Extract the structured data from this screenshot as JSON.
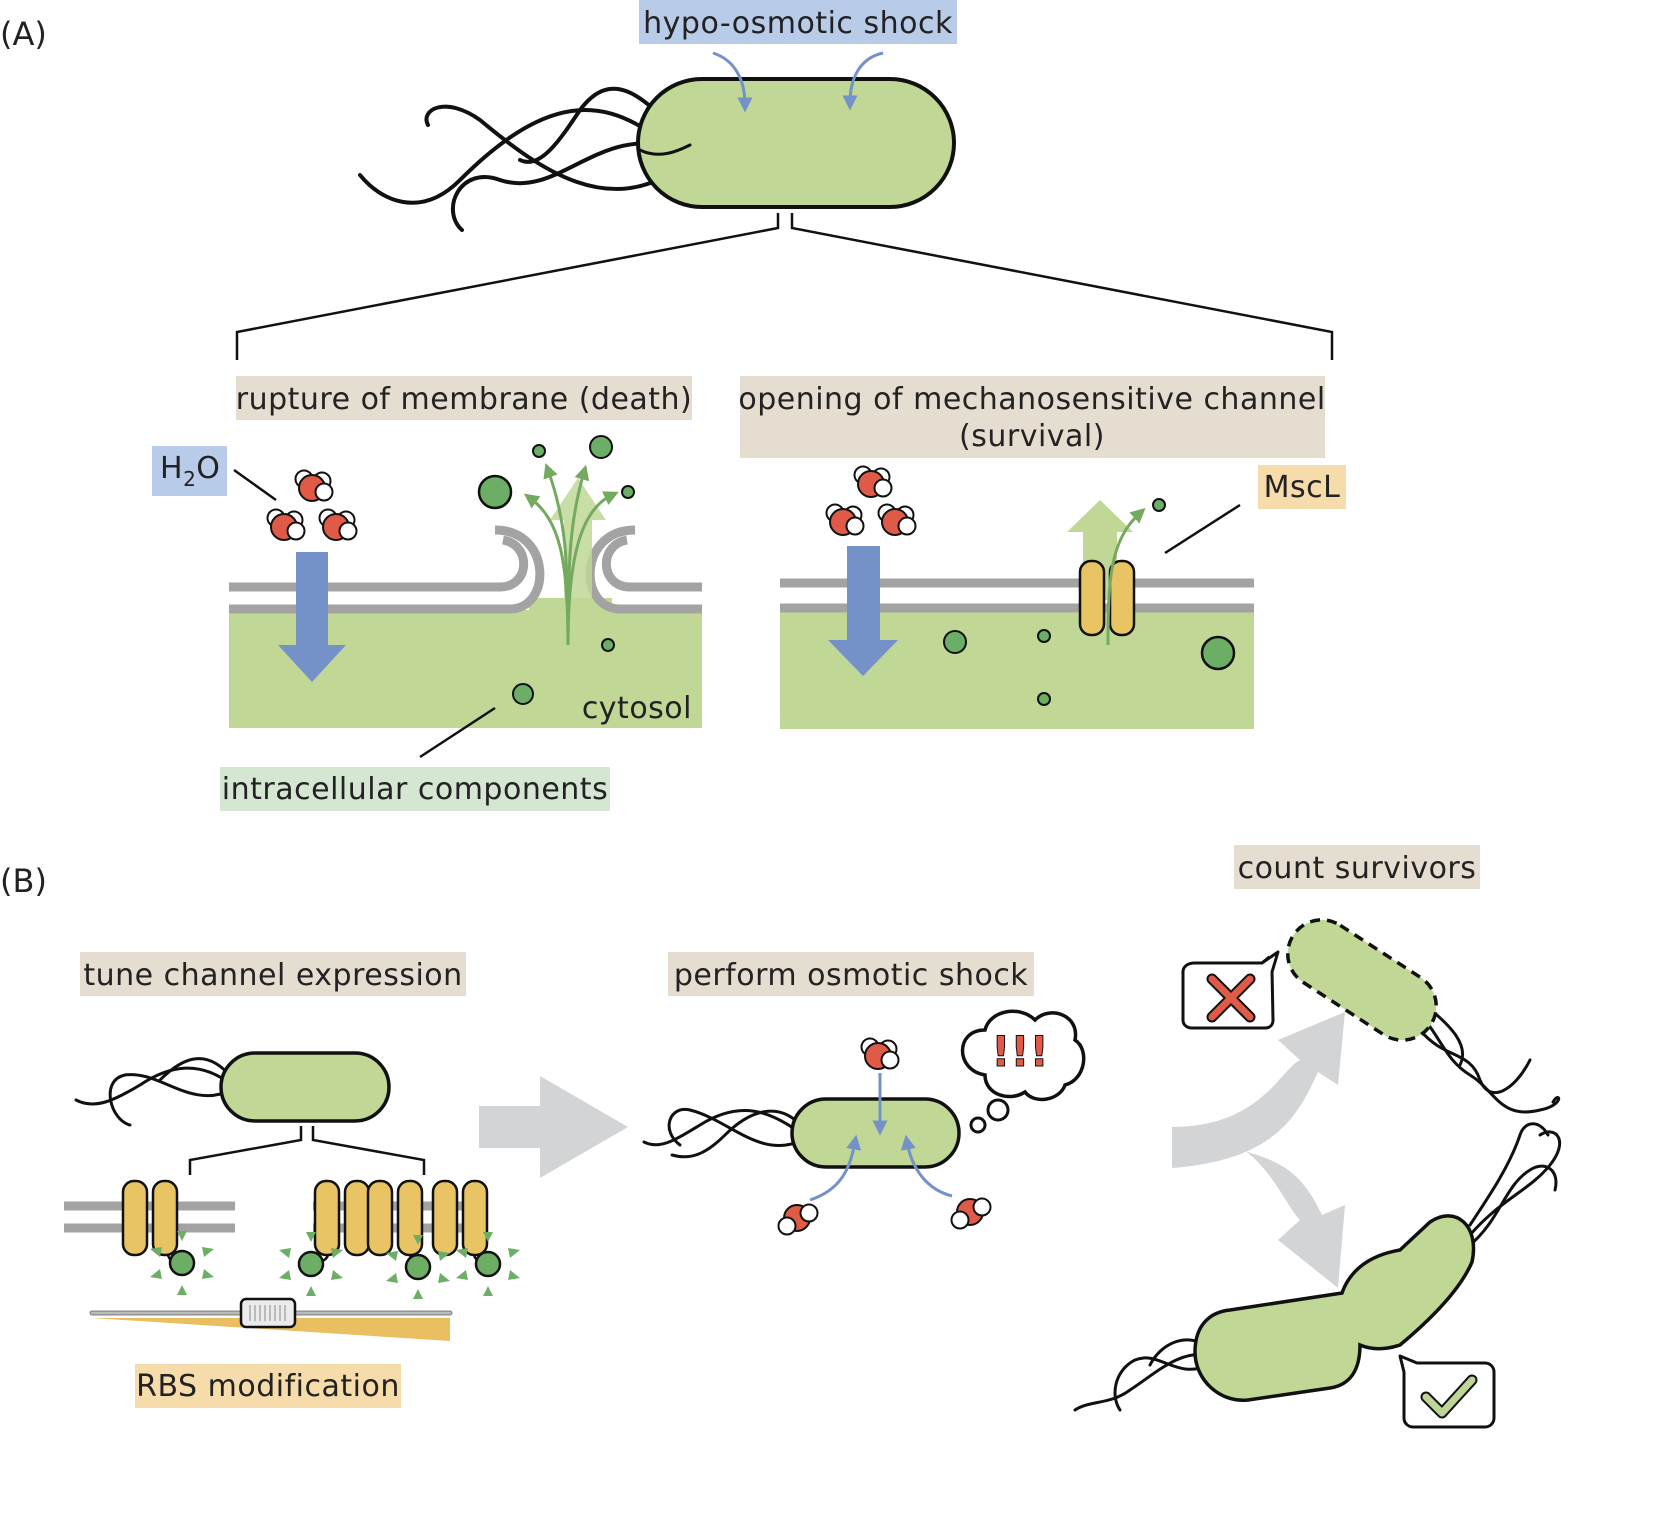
{
  "panels": {
    "a": "(A)",
    "b": "(B)"
  },
  "labels": {
    "hypo_osmotic_shock": "hypo-osmotic shock",
    "rupture": "rupture of membrane (death)",
    "opening_line1": "opening of mechanosensitive channel",
    "opening_line2": "(survival)",
    "water_main": "H",
    "water_sub": "2",
    "water_end": "O",
    "mscl": "MscL",
    "cytosol": "cytosol",
    "intracellular": "intracellular components",
    "tune": "tune channel expression",
    "perform": "perform osmotic shock",
    "count": "count survivors",
    "rbs": "RBS modification",
    "shock_exclaim": "!!!"
  },
  "colors": {
    "cell_fill": "#c0d796",
    "water_arrow": "#7592c8",
    "water_blue": "#7592c8",
    "label_tan": "#e6ddd1",
    "label_blue": "#b8cbe8",
    "label_yellow": "#f7dcab",
    "label_green": "#d5e6d2",
    "channel_yellow": "#e8c465",
    "oxygen_red": "#df5b47",
    "component_green": "#6cae65",
    "efflux_green": "#74aa5f",
    "grey_arrow": "#d2d4d6",
    "membrane_grey": "#a3a3a3",
    "cross_red": "#df5b47",
    "check_green": "#bdd596"
  },
  "icons": {
    "water": "water-molecule-icon",
    "channel": "mscl-channel-icon",
    "cross": "cross-icon",
    "check": "check-icon",
    "thought": "thought-bubble-icon"
  }
}
